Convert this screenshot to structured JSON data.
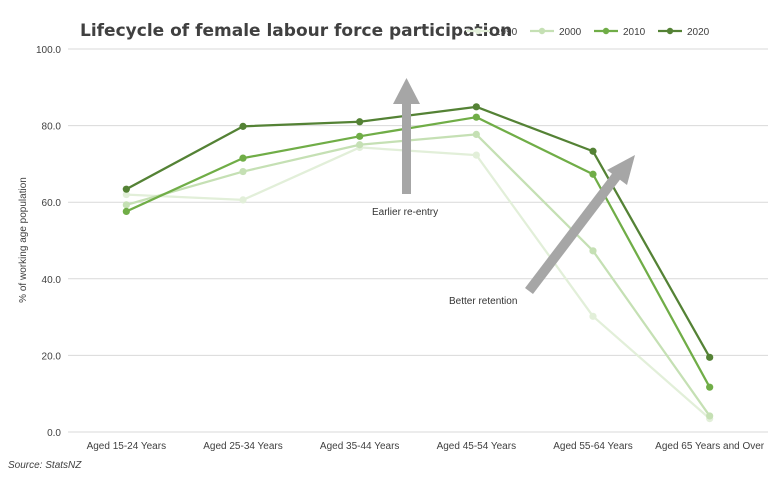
{
  "chart_data": {
    "type": "line",
    "title": "Lifecycle of female labour force participation",
    "ylabel": "% of working age population",
    "xlabel": "",
    "categories": [
      "Aged 15-24 Years",
      "Aged 25-34 Years",
      "Aged 35-44 Years",
      "Aged 45-54 Years",
      "Aged 55-64 Years",
      "Aged 65 Years and Over"
    ],
    "ylim": [
      0,
      100
    ],
    "yticks": [
      "0.0",
      "20.0",
      "40.0",
      "60.0",
      "80.0",
      "100.0"
    ],
    "grid": true,
    "legend_position": "top-right",
    "series": [
      {
        "name": "1990",
        "color": "#e2efd9",
        "values": [
          62.0,
          60.6,
          74.3,
          72.3,
          30.2,
          3.5
        ]
      },
      {
        "name": "2000",
        "color": "#c5e0b4",
        "values": [
          59.3,
          68.0,
          75.0,
          77.7,
          47.3,
          4.2
        ]
      },
      {
        "name": "2010",
        "color": "#70ad47",
        "values": [
          57.6,
          71.5,
          77.2,
          82.2,
          67.3,
          11.7
        ]
      },
      {
        "name": "2020",
        "color": "#548235",
        "values": [
          63.4,
          79.8,
          81.0,
          84.9,
          73.3,
          19.5
        ]
      }
    ],
    "annotations": [
      {
        "text": "Earlier re-entry",
        "arrow_direction": "up"
      },
      {
        "text": "Better retention",
        "arrow_direction": "up-right"
      }
    ],
    "arrow_color": "#a6a6a6",
    "source": "Source: StatsNZ"
  }
}
